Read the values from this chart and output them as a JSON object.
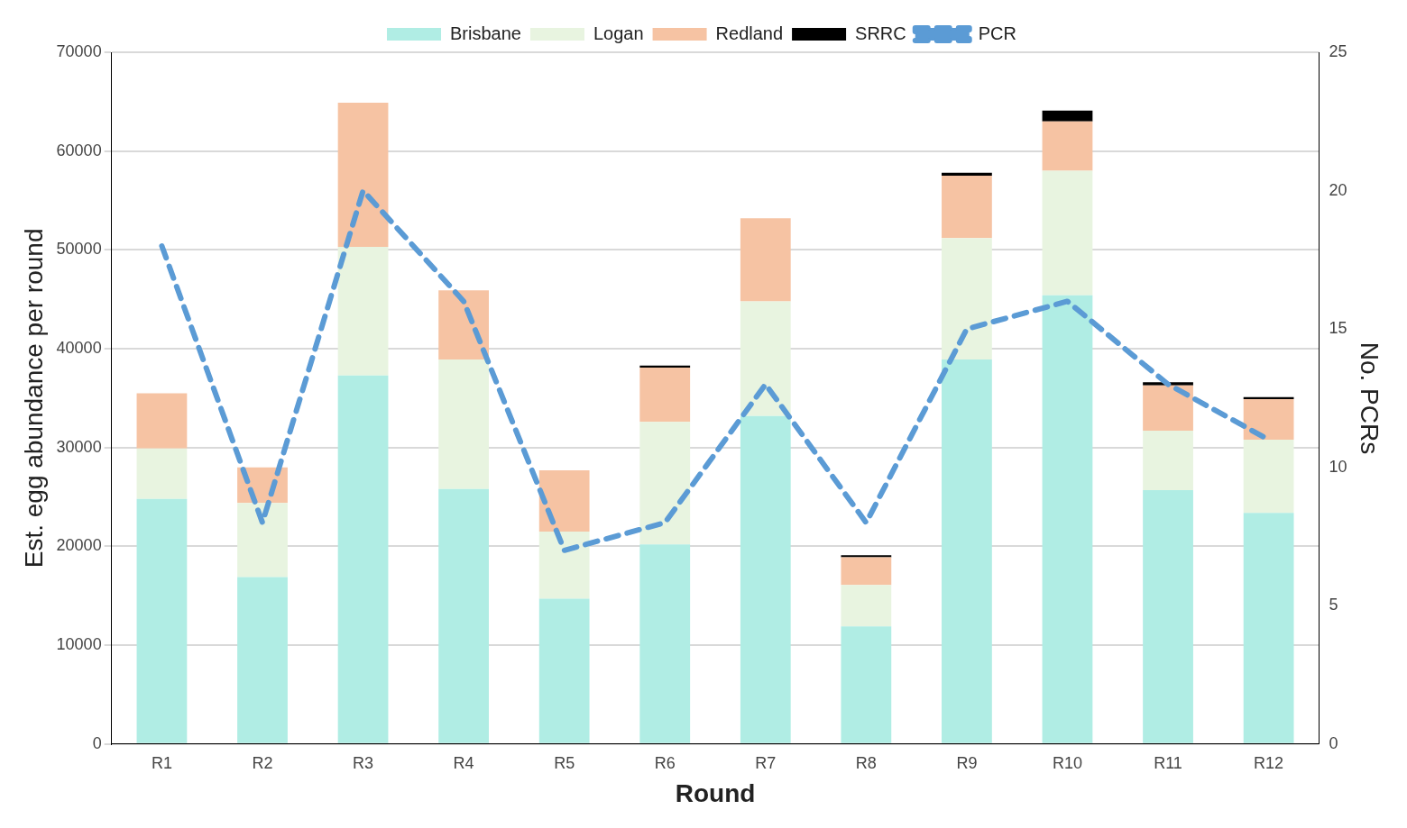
{
  "chart_data": {
    "type": "bar",
    "stacked": true,
    "xlabel": "Round",
    "ylabel": "Est. egg abundance per round",
    "y2label": "No. PCRs",
    "categories": [
      "R1",
      "R2",
      "R3",
      "R4",
      "R5",
      "R6",
      "R7",
      "R8",
      "R9",
      "R10",
      "R11",
      "R12"
    ],
    "series": [
      {
        "name": "Brisbane",
        "color": "#b0ede4",
        "values": [
          24800,
          16900,
          37300,
          25800,
          14700,
          20200,
          33200,
          11900,
          38900,
          45400,
          25700,
          23400
        ]
      },
      {
        "name": "Logan",
        "color": "#e8f4e0",
        "values": [
          5100,
          7500,
          13000,
          13100,
          6800,
          12400,
          11600,
          4200,
          12300,
          12600,
          6000,
          7400
        ]
      },
      {
        "name": "Redland",
        "color": "#f6c3a3",
        "values": [
          5600,
          3600,
          14600,
          7000,
          6200,
          5500,
          8400,
          2800,
          6300,
          5000,
          4600,
          4100
        ]
      },
      {
        "name": "SRRC",
        "color": "#000000",
        "values": [
          0,
          0,
          0,
          0,
          0,
          200,
          0,
          200,
          300,
          1100,
          300,
          200
        ]
      },
      {
        "name": "PCR",
        "type": "line",
        "axis": "y2",
        "color": "#5b9bd5",
        "line_style": "dashed",
        "marker": "none",
        "values": [
          18,
          8,
          20,
          16,
          7,
          8,
          13,
          8,
          15,
          16,
          13,
          11
        ]
      }
    ],
    "ylim": [
      0,
      70000
    ],
    "yticks": [
      0,
      10000,
      20000,
      30000,
      40000,
      50000,
      60000,
      70000
    ],
    "y2lim": [
      0,
      25
    ],
    "y2ticks": [
      0,
      5,
      10,
      15,
      20,
      25
    ],
    "grid": "y",
    "legend": "top"
  }
}
